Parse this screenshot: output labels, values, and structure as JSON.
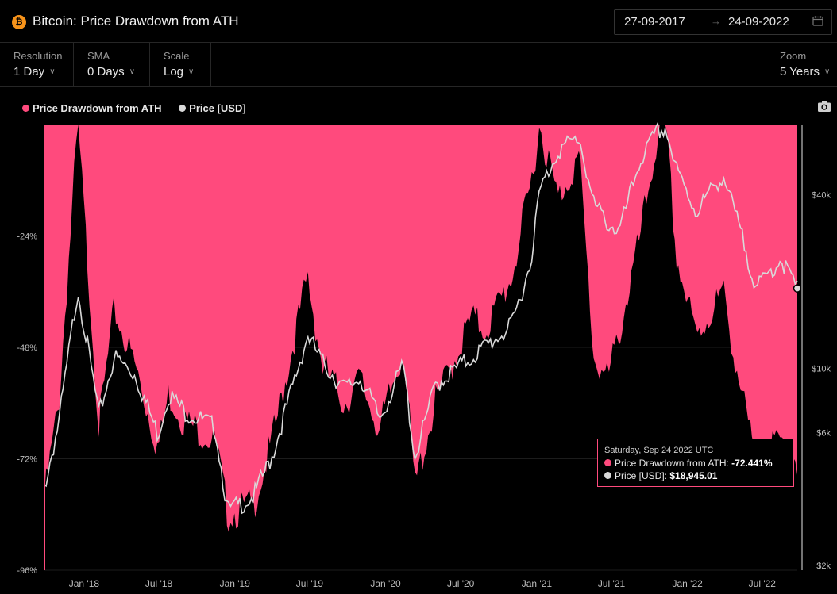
{
  "header": {
    "title": "Bitcoin: Price Drawdown from ATH",
    "icon": "bitcoin-icon",
    "date_from": "27-09-2017",
    "date_arrow": "→",
    "date_to": "24-09-2022"
  },
  "controls": {
    "resolution": {
      "label": "Resolution",
      "value": "1 Day"
    },
    "sma": {
      "label": "SMA",
      "value": "0 Days"
    },
    "scale": {
      "label": "Scale",
      "value": "Log"
    },
    "zoom": {
      "label": "Zoom",
      "value": "5 Years"
    }
  },
  "legend": [
    {
      "label": "Price Drawdown from ATH",
      "color": "#ff4a7d"
    },
    {
      "label": "Price [USD]",
      "color": "#d9d9d9"
    }
  ],
  "tooltip": {
    "date": "Saturday, Sep 24 2022 UTC",
    "drawdown_label": "Price Drawdown from ATH:",
    "drawdown_value": "-72.441%",
    "price_label": "Price [USD]:",
    "price_value": "$18,945.01"
  },
  "chart_data": {
    "type": "area",
    "y_left_ticks": [
      "-24%",
      "-48%",
      "-72%",
      "-96%"
    ],
    "y_left_range": [
      -96,
      0
    ],
    "y_right_ticks": [
      "$40k",
      "$10k",
      "$6k",
      "$2k"
    ],
    "y_right_scale": "log",
    "y_right_range": [
      2000,
      70000
    ],
    "x_ticks": [
      "Jan '18",
      "Jul '18",
      "Jan '19",
      "Jul '19",
      "Jan '20",
      "Jul '20",
      "Jan '21",
      "Jul '21",
      "Jan '22",
      "Jul '22"
    ],
    "series": [
      {
        "name": "Price Drawdown from ATH",
        "color": "#ff4a7d",
        "x": [
          "2017-09-27",
          "2017-11-01",
          "2017-12-17",
          "2018-02-06",
          "2018-03-15",
          "2018-05-05",
          "2018-06-29",
          "2018-07-25",
          "2018-09-01",
          "2018-11-14",
          "2018-12-15",
          "2019-02-15",
          "2019-04-02",
          "2019-06-26",
          "2019-08-01",
          "2019-09-24",
          "2019-11-01",
          "2019-12-18",
          "2020-02-13",
          "2020-03-12",
          "2020-05-01",
          "2020-07-26",
          "2020-09-01",
          "2020-11-01",
          "2020-12-16",
          "2021-01-08",
          "2021-02-21",
          "2021-04-14",
          "2021-05-19",
          "2021-06-22",
          "2021-07-20",
          "2021-09-07",
          "2021-10-20",
          "2021-11-10",
          "2021-12-04",
          "2022-01-22",
          "2022-03-28",
          "2022-05-12",
          "2022-06-18",
          "2022-08-15",
          "2022-09-24"
        ],
        "values": [
          -80,
          -60,
          0,
          -65,
          -40,
          -52,
          -70,
          -58,
          -64,
          -68,
          -84,
          -82,
          -68,
          -33,
          -52,
          -60,
          -55,
          -66,
          -48,
          -78,
          -60,
          -42,
          -44,
          -33,
          -14,
          0,
          -16,
          -7,
          -50,
          -55,
          -45,
          -25,
          -3,
          0,
          -28,
          -46,
          -36,
          -58,
          -74,
          -68,
          -72
        ]
      },
      {
        "name": "Price [USD]",
        "color": "#d9d9d9",
        "x": [
          "2017-09-27",
          "2017-11-01",
          "2017-12-17",
          "2018-02-06",
          "2018-03-15",
          "2018-05-05",
          "2018-06-29",
          "2018-07-25",
          "2018-09-01",
          "2018-11-14",
          "2018-12-15",
          "2019-02-15",
          "2019-04-02",
          "2019-06-26",
          "2019-08-01",
          "2019-09-24",
          "2019-11-01",
          "2019-12-18",
          "2020-02-13",
          "2020-03-12",
          "2020-05-01",
          "2020-07-26",
          "2020-09-01",
          "2020-11-01",
          "2020-12-16",
          "2021-01-08",
          "2021-02-21",
          "2021-04-14",
          "2021-05-19",
          "2021-06-22",
          "2021-07-20",
          "2021-09-07",
          "2021-10-20",
          "2021-11-10",
          "2021-12-04",
          "2022-01-22",
          "2022-03-28",
          "2022-05-12",
          "2022-06-18",
          "2022-08-15",
          "2022-09-24"
        ],
        "values": [
          3900,
          6500,
          19000,
          6900,
          11000,
          9500,
          5900,
          8200,
          7100,
          6300,
          3200,
          3600,
          5000,
          13000,
          10500,
          8500,
          9300,
          6700,
          10300,
          4900,
          8800,
          10900,
          12000,
          14000,
          23000,
          41000,
          57000,
          63000,
          37000,
          32000,
          29700,
          52000,
          66000,
          68000,
          49000,
          35000,
          47000,
          29000,
          18900,
          24000,
          18945
        ]
      }
    ]
  }
}
